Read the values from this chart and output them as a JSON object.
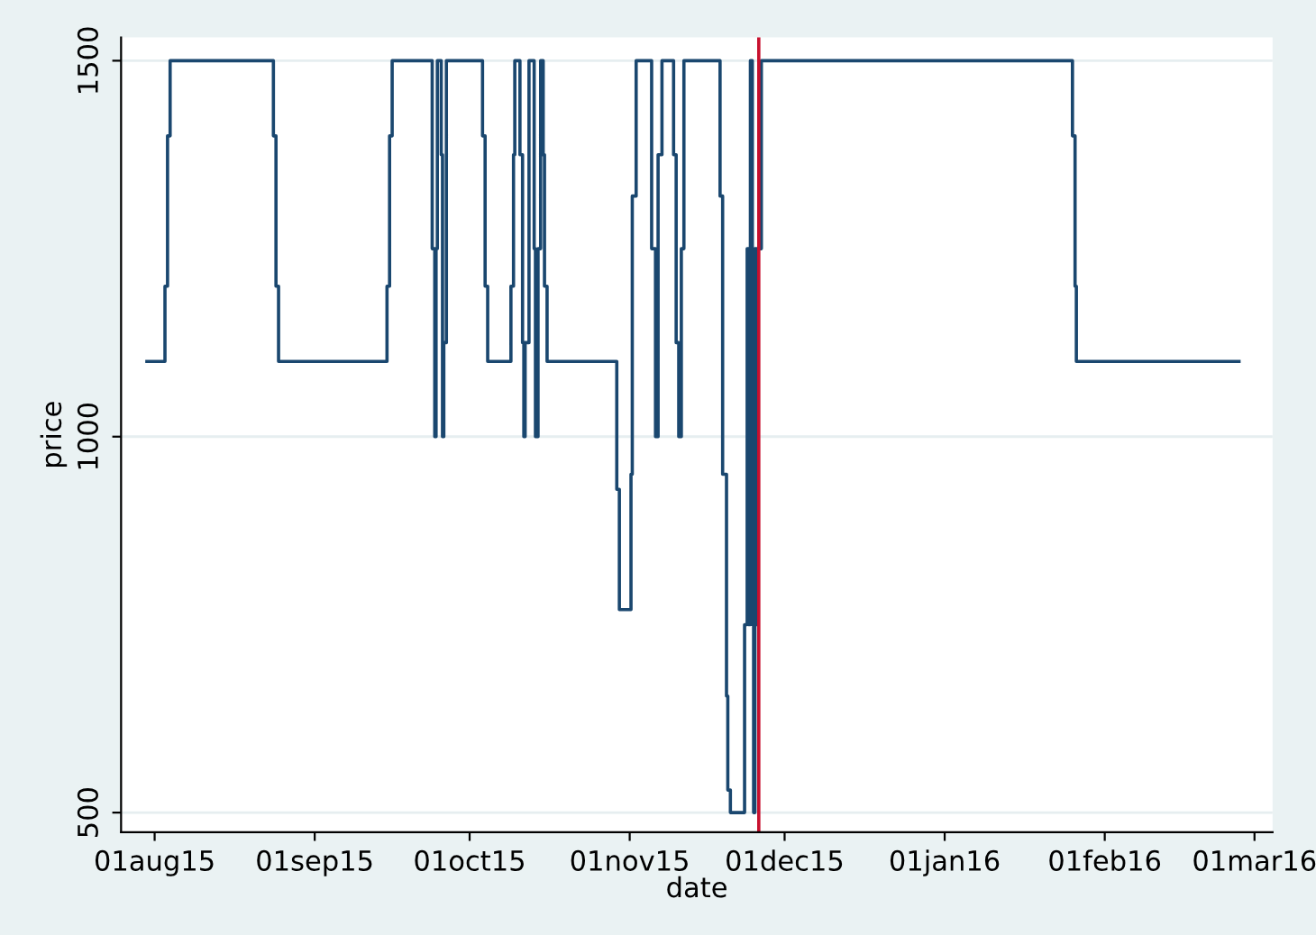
{
  "chart_data": {
    "type": "step",
    "xlabel": "date",
    "ylabel": "price",
    "x": [
      "2015-07-30T12:00",
      "2015-08-03T00:00",
      "2015-08-03T12:00",
      "2015-08-04T00:00",
      "2015-08-24T00:00",
      "2015-08-24T12:00",
      "2015-08-25T00:00",
      "2015-09-15T00:00",
      "2015-09-15T12:00",
      "2015-09-16T00:00",
      "2015-09-23T18:00",
      "2015-09-24T06:00",
      "2015-09-24T12:00",
      "2015-09-24T18:00",
      "2015-09-25T12:00",
      "2015-09-25T18:00",
      "2015-09-26T00:00",
      "2015-09-26T12:00",
      "2015-10-03T12:00",
      "2015-10-04T00:00",
      "2015-10-04T12:00",
      "2015-10-09T00:00",
      "2015-10-09T12:00",
      "2015-10-09T18:00",
      "2015-10-10T18:00",
      "2015-10-11T06:00",
      "2015-10-11T12:00",
      "2015-10-11T18:00",
      "2015-10-12T12:00",
      "2015-10-13T12:00",
      "2015-10-13T18:00",
      "2015-10-14T06:00",
      "2015-10-14T18:00",
      "2015-10-15T06:00",
      "2015-10-15T12:00",
      "2015-10-16T00:00",
      "2015-10-29T12:00",
      "2015-10-30T00:00",
      "2015-11-01T06:00",
      "2015-11-01T12:00",
      "2015-11-02T06:00",
      "2015-11-05T06:00",
      "2015-11-06T00:00",
      "2015-11-06T12:00",
      "2015-11-07T06:00",
      "2015-11-09T12:00",
      "2015-11-10T00:00",
      "2015-11-10T12:00",
      "2015-11-11T00:00",
      "2015-11-11T12:00",
      "2015-11-18T12:00",
      "2015-11-19T00:00",
      "2015-11-19T18:00",
      "2015-11-20T00:00",
      "2015-11-20T12:00",
      "2015-11-23T06:00",
      "2015-11-23T18:00",
      "2015-11-24T00:00",
      "2015-11-24T09:00",
      "2015-11-24T18:00",
      "2015-11-25T00:00",
      "2015-11-25T06:00",
      "2015-11-25T12:00",
      "2015-11-25T18:00",
      "2015-11-26T12:00",
      "2016-01-25T18:00",
      "2016-01-26T06:00",
      "2016-01-26T12:00",
      "2016-02-27T00:00"
    ],
    "series": [
      {
        "color": "#1a476f",
        "values": [
          1100,
          1200,
          1400,
          1500,
          1400,
          1200,
          1100,
          1200,
          1400,
          1500,
          1250,
          1000,
          1250,
          1500,
          1375,
          1000,
          1125,
          1500,
          1400,
          1200,
          1100,
          1200,
          1375,
          1500,
          1375,
          1125,
          1000,
          1125,
          1500,
          1250,
          1000,
          1250,
          1500,
          1375,
          1200,
          1100,
          930,
          770,
          950,
          1320,
          1500,
          1250,
          1000,
          1375,
          1500,
          1375,
          1125,
          1000,
          1250,
          1500,
          1320,
          950,
          655,
          530,
          500,
          750,
          1250,
          750,
          1500,
          750,
          500,
          1250,
          750,
          1250,
          1500,
          1400,
          1200,
          1100,
          1100
        ]
      }
    ],
    "xlim": [
      "2015-07-25T12:00",
      "2016-03-04T12:00"
    ],
    "xticks": [
      {
        "value": "2015-08-01",
        "label": "01aug15"
      },
      {
        "value": "2015-09-01",
        "label": "01sep15"
      },
      {
        "value": "2015-10-01",
        "label": "01oct15"
      },
      {
        "value": "2015-11-01",
        "label": "01nov15"
      },
      {
        "value": "2015-12-01",
        "label": "01dec15"
      },
      {
        "value": "2016-01-01",
        "label": "01jan16"
      },
      {
        "value": "2016-02-01",
        "label": "01feb16"
      },
      {
        "value": "2016-03-01",
        "label": "01mar16"
      }
    ],
    "ylim": [
      474,
      1531
    ],
    "yticks": [
      500,
      1000,
      1500
    ],
    "grid": "y",
    "ref_lines": [
      {
        "axis": "x",
        "value": "2015-11-26",
        "color": "#c8102e"
      }
    ]
  }
}
